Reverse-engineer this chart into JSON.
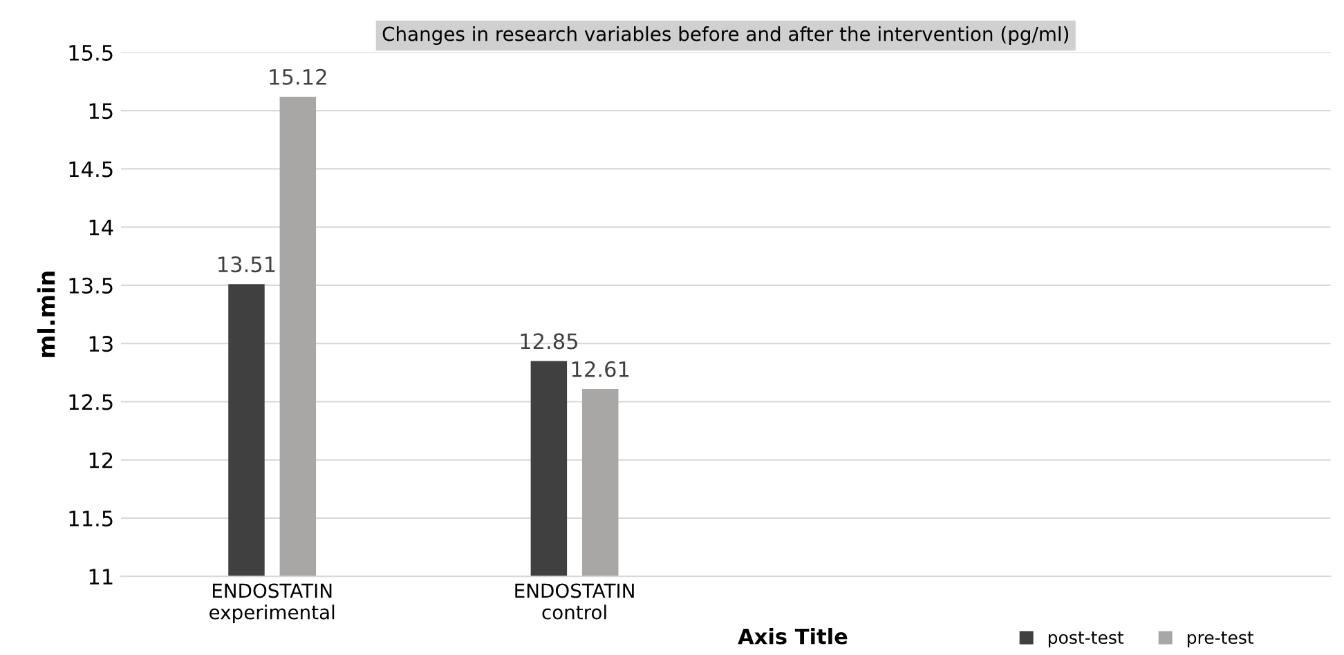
{
  "chart_data": {
    "type": "bar",
    "title": "Changes in research variables before and after the intervention (pg/ml)",
    "xlabel": "Axis Title",
    "ylabel": "ml.min",
    "categories": [
      "ENDOSTATIN\nexperimental",
      "ENDOSTATIN\ncontrol",
      null,
      null
    ],
    "series": [
      {
        "name": "post-test",
        "color": "#404040",
        "values": [
          13.51,
          12.85,
          null,
          null
        ]
      },
      {
        "name": "pre-test",
        "color": "#a9a6a6",
        "values": [
          15.12,
          12.61,
          null,
          null
        ]
      }
    ],
    "ylim": [
      11,
      15.5
    ],
    "yticks": [
      11,
      11.5,
      12,
      12.5,
      13,
      13.5,
      14,
      14.5,
      15,
      15.5
    ],
    "grid": "y",
    "data_labels": true,
    "legend": "bottom"
  }
}
